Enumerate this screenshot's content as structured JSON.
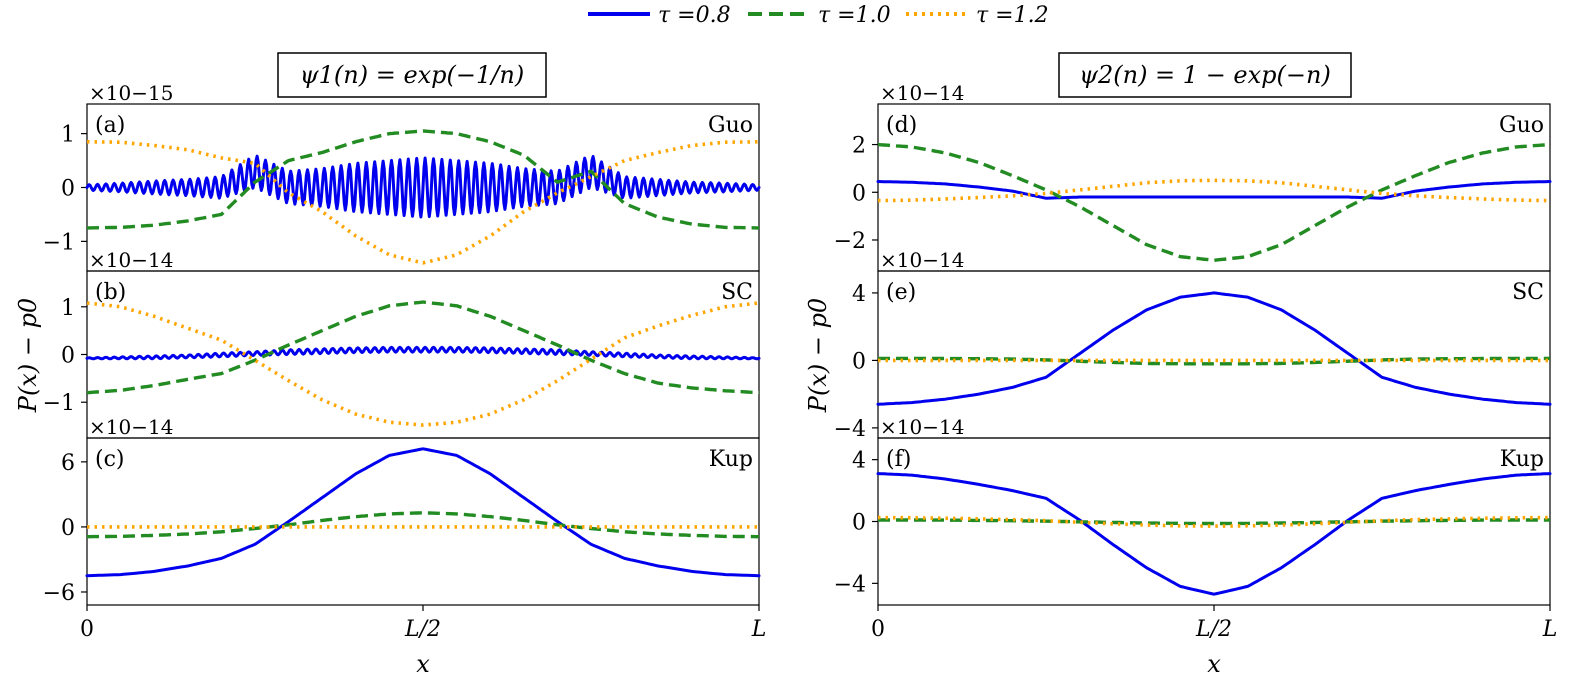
{
  "legend": [
    {
      "label": "τ =0.8",
      "color": "#0000ee",
      "dash": "solid"
    },
    {
      "label": "τ =1.0",
      "color": "#228b22",
      "dash": "dashed"
    },
    {
      "label": "τ =1.2",
      "color": "#ffa500",
      "dash": "dotted"
    }
  ],
  "columns": [
    {
      "title": "ψ1(n) = exp(−1/n)",
      "ylabel": "P(x) − p0",
      "xlabel": "x",
      "xticks": [
        "0",
        "L/2",
        "L"
      ]
    },
    {
      "title": "ψ2(n) = 1 − exp(−n)",
      "ylabel": "P(x) − p0",
      "xlabel": "x",
      "xticks": [
        "0",
        "L/2",
        "L"
      ]
    }
  ],
  "chart_data": [
    {
      "type": "line",
      "panel_label": "(a)",
      "scheme": "Guo",
      "multiplier": "×10−15",
      "x_unit": "L",
      "ylim": [
        -1.55,
        1.55
      ],
      "yticks": [
        {
          "v": 1,
          "label": "1"
        },
        {
          "v": 0,
          "label": "0"
        },
        {
          "v": -1,
          "label": "−1"
        }
      ],
      "x": [
        0,
        0.05,
        0.1,
        0.15,
        0.2,
        0.25,
        0.3,
        0.35,
        0.4,
        0.45,
        0.5,
        0.55,
        0.6,
        0.65,
        0.7,
        0.75,
        0.8,
        0.85,
        0.9,
        0.95,
        1
      ],
      "series": [
        {
          "name": "τ =0.8",
          "y": [
            0,
            0,
            0,
            0,
            0,
            0.3,
            0,
            0,
            0,
            0,
            0,
            0,
            0,
            0,
            0,
            0.3,
            0,
            0,
            0,
            0,
            0
          ],
          "oscillation": [
            0.05,
            0.08,
            0.12,
            0.15,
            0.2,
            0.3,
            0.3,
            0.35,
            0.45,
            0.5,
            0.55,
            0.5,
            0.45,
            0.35,
            0.3,
            0.3,
            0.2,
            0.15,
            0.1,
            0.08,
            0.05
          ]
        },
        {
          "name": "τ =1.0",
          "y": [
            -0.75,
            -0.74,
            -0.7,
            -0.62,
            -0.5,
            0.1,
            0.5,
            0.65,
            0.85,
            1.0,
            1.05,
            1.0,
            0.85,
            0.6,
            0.1,
            0.3,
            -0.3,
            -0.55,
            -0.68,
            -0.74,
            -0.75
          ]
        },
        {
          "name": "τ =1.2",
          "y": [
            0.85,
            0.84,
            0.78,
            0.7,
            0.55,
            0.45,
            -0.1,
            -0.45,
            -0.9,
            -1.25,
            -1.4,
            -1.25,
            -0.9,
            -0.45,
            -0.1,
            0.2,
            0.5,
            0.65,
            0.78,
            0.84,
            0.85
          ]
        }
      ]
    },
    {
      "type": "line",
      "panel_label": "(b)",
      "scheme": "SC",
      "multiplier": "×10−14",
      "x_unit": "L",
      "ylim": [
        -1.75,
        1.75
      ],
      "yticks": [
        {
          "v": 1,
          "label": "1"
        },
        {
          "v": 0,
          "label": "0"
        },
        {
          "v": -1,
          "label": "−1"
        }
      ],
      "x": [
        0,
        0.05,
        0.1,
        0.15,
        0.2,
        0.25,
        0.3,
        0.35,
        0.4,
        0.45,
        0.5,
        0.55,
        0.6,
        0.65,
        0.7,
        0.75,
        0.8,
        0.85,
        0.9,
        0.95,
        1
      ],
      "series": [
        {
          "name": "τ =0.8",
          "y": [
            -0.08,
            -0.07,
            -0.06,
            -0.04,
            -0.01,
            0.02,
            0.05,
            0.07,
            0.09,
            0.1,
            0.1,
            0.1,
            0.09,
            0.07,
            0.05,
            0.02,
            -0.01,
            -0.04,
            -0.06,
            -0.07,
            -0.08
          ],
          "oscillation": [
            0.01,
            0.02,
            0.03,
            0.03,
            0.04,
            0.04,
            0.05,
            0.05,
            0.05,
            0.05,
            0.05,
            0.05,
            0.05,
            0.05,
            0.05,
            0.04,
            0.04,
            0.03,
            0.03,
            0.02,
            0.01
          ]
        },
        {
          "name": "τ =1.0",
          "y": [
            -0.8,
            -0.75,
            -0.65,
            -0.52,
            -0.4,
            -0.12,
            0.2,
            0.5,
            0.8,
            1.02,
            1.1,
            1.02,
            0.8,
            0.5,
            0.2,
            -0.12,
            -0.4,
            -0.6,
            -0.7,
            -0.76,
            -0.8
          ]
        },
        {
          "name": "τ =1.2",
          "y": [
            1.08,
            1.0,
            0.8,
            0.55,
            0.3,
            -0.12,
            -0.55,
            -0.95,
            -1.25,
            -1.42,
            -1.48,
            -1.42,
            -1.25,
            -0.95,
            -0.55,
            -0.1,
            0.35,
            0.6,
            0.82,
            1.0,
            1.08
          ]
        }
      ]
    },
    {
      "type": "line",
      "panel_label": "(c)",
      "scheme": "Kup",
      "multiplier": "×10−14",
      "x_unit": "L",
      "ylim": [
        -7.2,
        8.2
      ],
      "yticks": [
        {
          "v": 6,
          "label": "6"
        },
        {
          "v": 0,
          "label": "0"
        },
        {
          "v": -6,
          "label": "−6"
        }
      ],
      "x": [
        0,
        0.05,
        0.1,
        0.15,
        0.2,
        0.25,
        0.3,
        0.35,
        0.4,
        0.45,
        0.5,
        0.55,
        0.6,
        0.65,
        0.7,
        0.75,
        0.8,
        0.85,
        0.9,
        0.95,
        1
      ],
      "series": [
        {
          "name": "τ =0.8",
          "y": [
            -4.5,
            -4.4,
            -4.1,
            -3.6,
            -2.9,
            -1.6,
            0.5,
            2.7,
            4.9,
            6.6,
            7.2,
            6.6,
            4.9,
            2.7,
            0.5,
            -1.6,
            -2.9,
            -3.6,
            -4.1,
            -4.4,
            -4.5
          ]
        },
        {
          "name": "τ =1.0",
          "y": [
            -0.9,
            -0.87,
            -0.78,
            -0.65,
            -0.45,
            -0.15,
            0.2,
            0.6,
            0.95,
            1.2,
            1.3,
            1.2,
            0.95,
            0.6,
            0.2,
            -0.15,
            -0.45,
            -0.65,
            -0.78,
            -0.87,
            -0.9
          ]
        },
        {
          "name": "τ =1.2",
          "y": [
            0,
            0,
            0,
            0,
            0,
            0,
            0,
            0,
            0,
            0,
            0,
            0,
            0,
            0,
            0,
            0,
            0,
            0,
            0,
            0,
            0
          ]
        }
      ]
    },
    {
      "type": "line",
      "panel_label": "(d)",
      "scheme": "Guo",
      "multiplier": "×10−14",
      "x_unit": "L",
      "ylim": [
        -3.3,
        3.7
      ],
      "yticks": [
        {
          "v": 2,
          "label": "2"
        },
        {
          "v": 0,
          "label": "0"
        },
        {
          "v": -2,
          "label": "−2"
        }
      ],
      "x": [
        0,
        0.05,
        0.1,
        0.15,
        0.2,
        0.25,
        0.3,
        0.35,
        0.4,
        0.45,
        0.5,
        0.55,
        0.6,
        0.65,
        0.7,
        0.75,
        0.8,
        0.85,
        0.9,
        0.95,
        1
      ],
      "series": [
        {
          "name": "τ =0.8",
          "y": [
            0.45,
            0.42,
            0.35,
            0.22,
            0.05,
            -0.25,
            -0.2,
            -0.2,
            -0.2,
            -0.2,
            -0.2,
            -0.2,
            -0.2,
            -0.2,
            -0.2,
            -0.25,
            0.05,
            0.22,
            0.35,
            0.42,
            0.45
          ]
        },
        {
          "name": "τ =1.0",
          "y": [
            2.0,
            1.9,
            1.65,
            1.25,
            0.7,
            0.1,
            -0.6,
            -1.4,
            -2.2,
            -2.7,
            -2.85,
            -2.7,
            -2.2,
            -1.4,
            -0.6,
            0.1,
            0.7,
            1.25,
            1.65,
            1.9,
            2.0
          ]
        },
        {
          "name": "τ =1.2",
          "y": [
            -0.35,
            -0.33,
            -0.28,
            -0.22,
            -0.15,
            -0.05,
            0.1,
            0.25,
            0.4,
            0.48,
            0.5,
            0.48,
            0.4,
            0.25,
            0.1,
            -0.05,
            -0.15,
            -0.22,
            -0.28,
            -0.33,
            -0.35
          ]
        }
      ]
    },
    {
      "type": "line",
      "panel_label": "(e)",
      "scheme": "SC",
      "multiplier": "×10−14",
      "x_unit": "L",
      "ylim": [
        -4.6,
        5.3
      ],
      "yticks": [
        {
          "v": 4,
          "label": "4"
        },
        {
          "v": 0,
          "label": "0"
        },
        {
          "v": -4,
          "label": "−4"
        }
      ],
      "x": [
        0,
        0.05,
        0.1,
        0.15,
        0.2,
        0.25,
        0.3,
        0.35,
        0.4,
        0.45,
        0.5,
        0.55,
        0.6,
        0.65,
        0.7,
        0.75,
        0.8,
        0.85,
        0.9,
        0.95,
        1
      ],
      "series": [
        {
          "name": "τ =0.8",
          "y": [
            -2.6,
            -2.5,
            -2.3,
            -2.0,
            -1.6,
            -1.0,
            0.4,
            1.8,
            3.0,
            3.75,
            4.0,
            3.75,
            3.0,
            1.8,
            0.4,
            -1.0,
            -1.6,
            -2.0,
            -2.3,
            -2.5,
            -2.6
          ]
        },
        {
          "name": "τ =1.0",
          "y": [
            0.12,
            0.12,
            0.11,
            0.1,
            0.08,
            0.03,
            -0.05,
            -0.12,
            -0.18,
            -0.2,
            -0.2,
            -0.2,
            -0.18,
            -0.12,
            -0.05,
            0.03,
            0.08,
            0.1,
            0.11,
            0.12,
            0.12
          ]
        },
        {
          "name": "τ =1.2",
          "y": [
            0,
            0,
            0,
            0,
            0,
            0,
            0,
            0,
            0,
            0,
            0,
            0,
            0,
            0,
            0,
            0,
            0,
            0,
            0,
            0,
            0
          ]
        }
      ]
    },
    {
      "type": "line",
      "panel_label": "(f)",
      "scheme": "Kup",
      "multiplier": "×10−14",
      "x_unit": "L",
      "ylim": [
        -5.4,
        5.4
      ],
      "yticks": [
        {
          "v": 4,
          "label": "4"
        },
        {
          "v": 0,
          "label": "0"
        },
        {
          "v": -4,
          "label": "−4"
        }
      ],
      "x": [
        0,
        0.05,
        0.1,
        0.15,
        0.2,
        0.25,
        0.3,
        0.35,
        0.4,
        0.45,
        0.5,
        0.55,
        0.6,
        0.65,
        0.7,
        0.75,
        0.8,
        0.85,
        0.9,
        0.95,
        1
      ],
      "series": [
        {
          "name": "τ =0.8",
          "y": [
            3.1,
            3.0,
            2.75,
            2.4,
            2.0,
            1.5,
            0.1,
            -1.5,
            -3.0,
            -4.2,
            -4.7,
            -4.2,
            -3.0,
            -1.5,
            0.1,
            1.5,
            2.0,
            2.4,
            2.75,
            3.0,
            3.1
          ]
        },
        {
          "name": "τ =1.0",
          "y": [
            0.1,
            0.1,
            0.09,
            0.07,
            0.05,
            0.02,
            -0.02,
            -0.06,
            -0.1,
            -0.12,
            -0.13,
            -0.12,
            -0.1,
            -0.06,
            -0.02,
            0.02,
            0.05,
            0.07,
            0.09,
            0.1,
            0.1
          ]
        },
        {
          "name": "τ =1.2",
          "y": [
            0.25,
            0.24,
            0.21,
            0.17,
            0.12,
            0.05,
            -0.05,
            -0.15,
            -0.23,
            -0.28,
            -0.3,
            -0.28,
            -0.23,
            -0.15,
            -0.05,
            0.05,
            0.12,
            0.17,
            0.21,
            0.24,
            0.25
          ]
        }
      ]
    }
  ]
}
